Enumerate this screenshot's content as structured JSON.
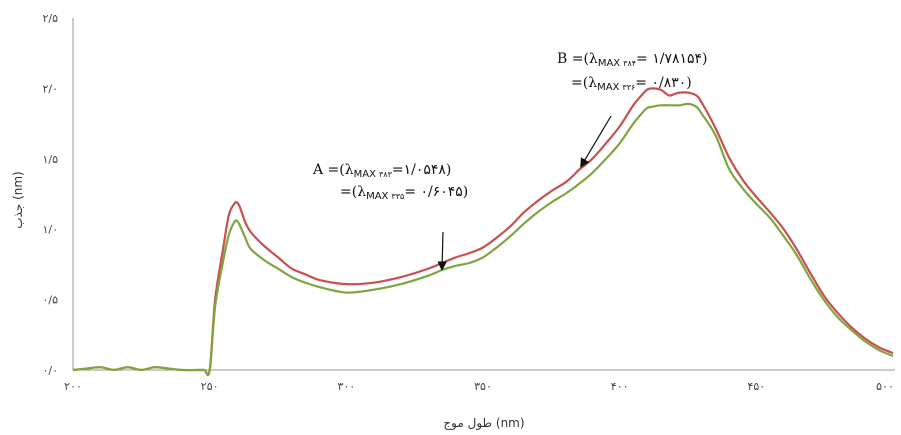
{
  "chart_data": {
    "type": "line",
    "xlabel": "طول موج (nm)",
    "ylabel": "جذب (nm)",
    "xlim": [
      200,
      500
    ],
    "ylim": [
      0,
      2.5
    ],
    "x_ticks": [
      200,
      250,
      300,
      350,
      400,
      450,
      500
    ],
    "y_ticks": [
      0,
      0.5,
      1.0,
      1.5,
      2.0,
      2.5
    ],
    "x_tick_labels": [
      "۲۰۰",
      "۲۵۰",
      "۳۰۰",
      "۳۵۰",
      "۴۰۰",
      "۴۵۰",
      "۵۰۰"
    ],
    "y_tick_labels": [
      "۰/۰",
      "۰/۵",
      "۱/۰",
      "۱/۵",
      "۲/۰",
      "۲/۵"
    ],
    "grid": false,
    "series": [
      {
        "color": "#c85050",
        "x": [
          200,
          205,
          210,
          215,
          220,
          225,
          230,
          235,
          240,
          245,
          248,
          250,
          252,
          255,
          257,
          259,
          260,
          261,
          263,
          265,
          270,
          275,
          280,
          285,
          290,
          300,
          310,
          320,
          330,
          335,
          340,
          345,
          350,
          355,
          360,
          365,
          370,
          375,
          380,
          383,
          385,
          390,
          395,
          400,
          405,
          408,
          410,
          412,
          415,
          418,
          420,
          422,
          425,
          428,
          430,
          435,
          440,
          445,
          450,
          455,
          460,
          465,
          470,
          475,
          480,
          485,
          490,
          495,
          500
        ],
        "y": [
          0,
          0.01,
          0.02,
          0,
          0.02,
          0,
          0.02,
          0.01,
          0,
          0,
          0,
          0,
          0.5,
          0.87,
          1.1,
          1.18,
          1.19,
          1.16,
          1.05,
          0.98,
          0.88,
          0.8,
          0.72,
          0.68,
          0.64,
          0.61,
          0.62,
          0.66,
          0.72,
          0.76,
          0.8,
          0.83,
          0.87,
          0.94,
          1.02,
          1.12,
          1.2,
          1.27,
          1.33,
          1.38,
          1.42,
          1.5,
          1.61,
          1.73,
          1.88,
          1.95,
          1.99,
          2.0,
          1.99,
          1.95,
          1.96,
          1.97,
          1.97,
          1.95,
          1.9,
          1.72,
          1.51,
          1.35,
          1.23,
          1.12,
          1.0,
          0.85,
          0.68,
          0.52,
          0.4,
          0.3,
          0.22,
          0.16,
          0.12
        ]
      },
      {
        "color": "#7ea640",
        "x": [
          200,
          205,
          210,
          215,
          220,
          225,
          230,
          235,
          240,
          245,
          248,
          250,
          252,
          255,
          257,
          259,
          260,
          261,
          263,
          265,
          270,
          275,
          280,
          285,
          290,
          300,
          310,
          320,
          330,
          335,
          340,
          345,
          350,
          355,
          360,
          365,
          370,
          375,
          380,
          383,
          385,
          390,
          395,
          400,
          405,
          408,
          410,
          412,
          415,
          418,
          420,
          422,
          425,
          428,
          430,
          435,
          440,
          445,
          450,
          455,
          460,
          465,
          470,
          475,
          480,
          485,
          490,
          495,
          500
        ],
        "y": [
          0,
          0.01,
          0.02,
          0,
          0.02,
          0,
          0.02,
          0.01,
          0,
          0,
          0,
          0,
          0.45,
          0.78,
          0.96,
          1.05,
          1.06,
          1.03,
          0.94,
          0.86,
          0.78,
          0.72,
          0.66,
          0.62,
          0.59,
          0.55,
          0.57,
          0.61,
          0.67,
          0.71,
          0.74,
          0.76,
          0.8,
          0.87,
          0.95,
          1.04,
          1.12,
          1.19,
          1.25,
          1.29,
          1.32,
          1.4,
          1.5,
          1.61,
          1.75,
          1.82,
          1.86,
          1.87,
          1.88,
          1.88,
          1.88,
          1.88,
          1.89,
          1.87,
          1.82,
          1.67,
          1.43,
          1.29,
          1.18,
          1.08,
          0.95,
          0.81,
          0.64,
          0.49,
          0.37,
          0.28,
          0.2,
          0.14,
          0.1
        ]
      }
    ],
    "annotations": [
      {
        "line1": {
          "prefix": "A =(λ",
          "max": "MAX",
          "sub": "۳۸۳",
          "suffix": "=۱/۰۵۴۸)"
        },
        "line2": {
          "prefix": "=(λ",
          "max": "MAX",
          "sub": "۳۳۵",
          "suffix": "= ۰/۶۰۴۵)"
        },
        "arrow_to": [
          335,
          0.72
        ]
      },
      {
        "line1": {
          "prefix": "B =(λ",
          "max": "MAX",
          "sub": "۳۸۴",
          "suffix": "= ۱/۷۸۱۵۴)"
        },
        "line2": {
          "prefix": "=(λ",
          "max": "MAX",
          "sub": "۳۳۶",
          "suffix": "= ۰/۸۳۰)"
        },
        "arrow_to": [
          386,
          1.45
        ]
      }
    ]
  }
}
